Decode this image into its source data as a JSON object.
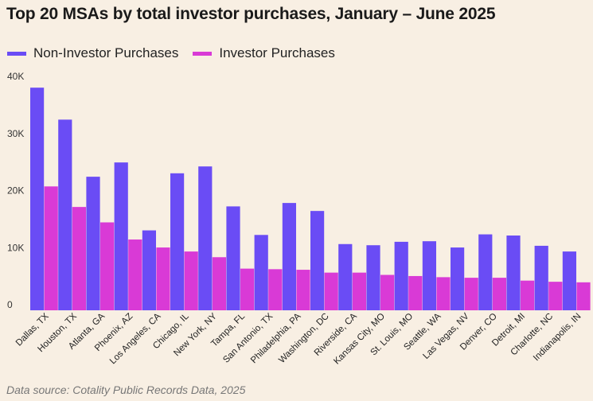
{
  "title": "Top 20 MSAs by total investor purchases, January – June 2025",
  "legend": {
    "items": [
      {
        "label": "Non-Investor Purchases",
        "color": "#6a4cf5"
      },
      {
        "label": "Investor Purchases",
        "color": "#d93ad6"
      }
    ]
  },
  "source": "Data source: Cotality Public Records Data, 2025",
  "chart_data": {
    "type": "bar",
    "title": "Top 20 MSAs by total investor purchases, January – June 2025",
    "xlabel": "",
    "ylabel": "",
    "ylim": [
      0,
      40000
    ],
    "yticks": [
      0,
      10000,
      20000,
      30000,
      40000
    ],
    "ytick_labels": [
      "0",
      "10K",
      "20K",
      "30K",
      "40K"
    ],
    "grid": false,
    "legend_position": "top-left",
    "categories": [
      "Dallas, TX",
      "Houston, TX",
      "Atlanta, GA",
      "Phoenix, AZ",
      "Los Angeles, CA",
      "Chicago, IL",
      "New York, NY",
      "Tampa, FL",
      "San Antonio, TX",
      "Philadelphia, PA",
      "Washington, DC",
      "Riverside, CA",
      "Kansas City, MO",
      "St. Louis, MO",
      "Seattle, WA",
      "Las Vegas, NV",
      "Denver, CO",
      "Detroit, MI",
      "Charlotte, NC",
      "Indianapolis, IN"
    ],
    "series": [
      {
        "name": "Non-Investor Purchases",
        "color": "#6a4cf5",
        "values": [
          39000,
          33400,
          23400,
          25900,
          14000,
          24000,
          25200,
          18200,
          13200,
          18800,
          17400,
          11600,
          11400,
          12000,
          12100,
          11000,
          13300,
          13100,
          11300,
          10300
        ]
      },
      {
        "name": "Investor Purchases",
        "color": "#d93ad6",
        "values": [
          21700,
          18100,
          15400,
          12400,
          11000,
          10300,
          9300,
          7300,
          7200,
          7100,
          6600,
          6600,
          6200,
          6000,
          5800,
          5700,
          5700,
          5200,
          5000,
          4900
        ]
      }
    ]
  }
}
